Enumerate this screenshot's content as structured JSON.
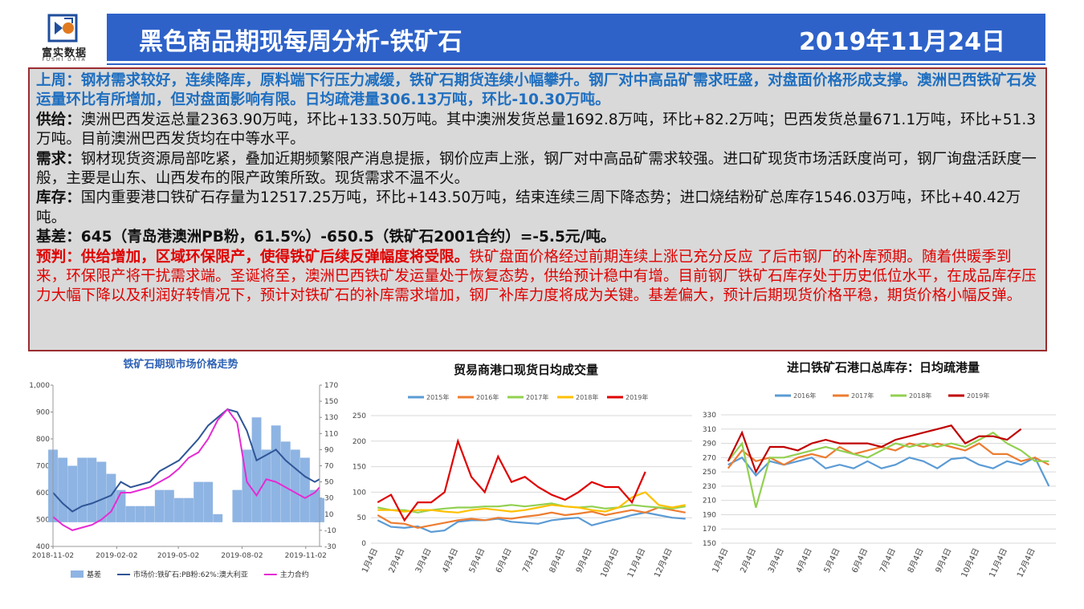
{
  "header": {
    "logo_text": "富实数据",
    "logo_sub": "FUSHI DATA",
    "title": "黑色商品期现每周分析-铁矿石",
    "date": "2019年11月24日"
  },
  "summary": {
    "paragraphs": [
      {
        "label": "上周：",
        "text": "钢材需求较好，连续降库，原料端下行压力减缓，铁矿石期货连续小幅攀升。钢厂对中高品矿需求旺盛，对盘面价格形成支撑。澳洲巴西铁矿石发运量环比有所增加，但对盘面影响有限。日均疏港量306.13万吨，环比-10.30万吨。"
      },
      {
        "label": "供给：",
        "text": "澳洲巴西发运总量2363.90万吨，环比+133.50万吨。其中澳洲发货总量1692.8万吨，环比+82.2万吨；巴西发货总量671.1万吨，环比+51.3万吨。目前澳洲巴西发货均在中等水平。"
      },
      {
        "label": "需求：",
        "text": "钢材现货资源局部吃紧，叠加近期频繁限产消息提振，钢价应声上涨，钢厂对中高品矿需求较强。进口矿现货市场活跃度尚可，钢厂询盘活跃度一般，主要是山东、山西发布的限产政策所致。现货需求不温不火。"
      },
      {
        "label": "库存：",
        "text": "国内重要港口铁矿石存量为12517.25万吨，环比+143.50万吨，结束连续三周下降态势；进口烧结粉矿总库存1546.03万吨，环比+40.42万吨。"
      },
      {
        "label": "基差：",
        "text": "645（青岛港澳洲PB粉，61.5%）-650.5（铁矿石2001合约）=-5.5元/吨。"
      },
      {
        "label": "预判：",
        "lead": "供给增加，区域环保限产，使得铁矿后续反弹幅度将受限。",
        "text": "铁矿盘面价格经过前期连续上涨已充分反应 了后市钢厂的补库预期。随着供暖季到来，环保限产将干扰需求端。圣诞将至，澳洲巴西铁矿发运量处于恢复态势，供给预计稳中有增。目前钢厂铁矿石库存处于历史低位水平，在成品库存压力大幅下降以及利润好转情况下，预计对铁矿石的补库需求增加，钢厂补库力度将成为关键。基差偏大，预计后期现货价格平稳，期货价格小幅反弹。"
      }
    ]
  },
  "chart_data": [
    {
      "type": "area_line",
      "title": "铁矿石期现市场价格走势",
      "x": [
        "2018-11-02",
        "2018-11-16",
        "2018-11-30",
        "2018-12-14",
        "2018-12-28",
        "2019-01-11",
        "2019-01-25",
        "2019-02-08",
        "2019-02-22",
        "2019-03-08",
        "2019-03-22",
        "2019-04-05",
        "2019-04-19",
        "2019-05-03",
        "2019-05-17",
        "2019-05-31",
        "2019-06-14",
        "2019-06-28",
        "2019-07-12",
        "2019-07-26",
        "2019-08-09",
        "2019-08-23",
        "2019-09-06",
        "2019-09-20",
        "2019-10-04",
        "2019-10-18",
        "2019-11-01",
        "2019-11-15",
        "2019-11-22"
      ],
      "xlim": [
        "2018-11-02",
        "2019-11-22"
      ],
      "xticks": [
        "2018-11-02",
        "2019-02-02",
        "2019-05-02",
        "2019-08-02",
        "2019-11-02"
      ],
      "ylim": [
        400,
        1000
      ],
      "yticks": [
        400,
        500,
        600,
        700,
        800,
        900,
        {
          "value": 1000,
          "label": "1,000"
        }
      ],
      "y2lim": [
        -30,
        170
      ],
      "y2ticks": [
        -30,
        -10,
        10,
        30,
        50,
        70,
        90,
        110,
        130,
        150,
        170
      ],
      "series": [
        {
          "name": "基差",
          "color": "#8eb4e3",
          "axis": "y2",
          "style": "area",
          "values": [
            90,
            80,
            70,
            80,
            80,
            75,
            60,
            40,
            20,
            20,
            20,
            40,
            40,
            30,
            30,
            50,
            50,
            10,
            0,
            40,
            90,
            130,
            90,
            120,
            100,
            90,
            80,
            40,
            30
          ]
        },
        {
          "name": "市场价:铁矿石:PB粉:62%:澳大利亚",
          "color": "#2f5597",
          "style": "line",
          "values": [
            600,
            560,
            530,
            550,
            560,
            575,
            590,
            640,
            620,
            630,
            640,
            680,
            700,
            720,
            760,
            800,
            850,
            880,
            910,
            900,
            830,
            720,
            740,
            760,
            720,
            690,
            660,
            640,
            650
          ]
        },
        {
          "name": "主力合约",
          "color": "#e62bd3",
          "style": "line",
          "values": [
            510,
            480,
            460,
            470,
            480,
            500,
            530,
            600,
            600,
            610,
            620,
            640,
            660,
            690,
            730,
            750,
            800,
            870,
            910,
            860,
            640,
            590,
            650,
            640,
            620,
            600,
            580,
            600,
            620
          ]
        }
      ]
    },
    {
      "type": "line",
      "title": "贸易商港口现货日均成交量",
      "grid": true,
      "categories": [
        "1月4日",
        null,
        "2月4日",
        null,
        "3月4日",
        null,
        "4月4日",
        null,
        "5月4日",
        null,
        "6月4日",
        null,
        "7月4日",
        null,
        "8月4日",
        null,
        "9月4日",
        null,
        "10月4日",
        null,
        "11月4日",
        null,
        "12月4日",
        null
      ],
      "ylim": [
        0,
        250
      ],
      "yticks": [
        0,
        50,
        100,
        150,
        200,
        250
      ],
      "series": [
        {
          "name": "2015年",
          "color": "#5b9bd5",
          "values": [
            45,
            32,
            30,
            33,
            22,
            25,
            42,
            45,
            45,
            48,
            42,
            40,
            38,
            45,
            48,
            50,
            35,
            42,
            48,
            55,
            60,
            55,
            50,
            48
          ]
        },
        {
          "name": "2016年",
          "color": "#ed7d31",
          "values": [
            55,
            40,
            38,
            30,
            35,
            40,
            45,
            48,
            45,
            50,
            48,
            52,
            55,
            60,
            55,
            58,
            62,
            55,
            60,
            65,
            60,
            70,
            65,
            60
          ]
        },
        {
          "name": "2017年",
          "color": "#92d050",
          "values": [
            70,
            65,
            65,
            60,
            65,
            68,
            70,
            70,
            72,
            72,
            75,
            72,
            75,
            78,
            72,
            70,
            72,
            68,
            70,
            75,
            72,
            70,
            68,
            72
          ]
        },
        {
          "name": "2018年",
          "color": "#ffc000",
          "values": [
            65,
            65,
            62,
            65,
            65,
            62,
            60,
            65,
            68,
            65,
            62,
            65,
            70,
            75,
            72,
            70,
            65,
            62,
            70,
            90,
            100,
            75,
            70,
            75
          ]
        },
        {
          "name": "2019年",
          "color": "#e00000",
          "values": [
            80,
            95,
            45,
            80,
            80,
            100,
            200,
            130,
            100,
            170,
            120,
            130,
            110,
            95,
            85,
            100,
            120,
            110,
            110,
            80,
            140,
            null,
            null,
            null
          ]
        }
      ]
    },
    {
      "type": "line",
      "title": "进口铁矿石港口总库存：日均疏港量",
      "grid": true,
      "categories": [
        "1月4日",
        null,
        "2月4日",
        null,
        "3月4日",
        null,
        "4月4日",
        null,
        "5月4日",
        null,
        "6月4日",
        null,
        "7月4日",
        null,
        "8月4日",
        null,
        "9月4日",
        null,
        "10月4日",
        null,
        "11月4日",
        null,
        "12月4日",
        null
      ],
      "ylim": [
        150,
        330
      ],
      "yticks": [
        150,
        170,
        190,
        210,
        230,
        250,
        270,
        290,
        310,
        330
      ],
      "series": [
        {
          "name": "2016年",
          "color": "#5b9bd5",
          "values": [
            260,
            270,
            245,
            265,
            260,
            265,
            270,
            255,
            260,
            255,
            265,
            255,
            260,
            270,
            265,
            255,
            268,
            270,
            260,
            255,
            265,
            260,
            270,
            230
          ]
        },
        {
          "name": "2017年",
          "color": "#ed7d31",
          "values": [
            255,
            280,
            265,
            270,
            260,
            270,
            275,
            270,
            285,
            275,
            280,
            285,
            280,
            290,
            285,
            290,
            285,
            280,
            290,
            275,
            275,
            265,
            270,
            260
          ]
        },
        {
          "name": "2018年",
          "color": "#92d050",
          "values": [
            265,
            290,
            200,
            270,
            270,
            275,
            280,
            285,
            280,
            275,
            270,
            280,
            290,
            285,
            290,
            285,
            290,
            285,
            295,
            305,
            290,
            280,
            265,
            265
          ]
        },
        {
          "name": "2019年",
          "color": "#c00000",
          "values": [
            265,
            305,
            250,
            285,
            285,
            280,
            290,
            295,
            290,
            290,
            290,
            285,
            295,
            300,
            305,
            310,
            315,
            290,
            300,
            300,
            295,
            310,
            null,
            null
          ]
        }
      ]
    }
  ]
}
